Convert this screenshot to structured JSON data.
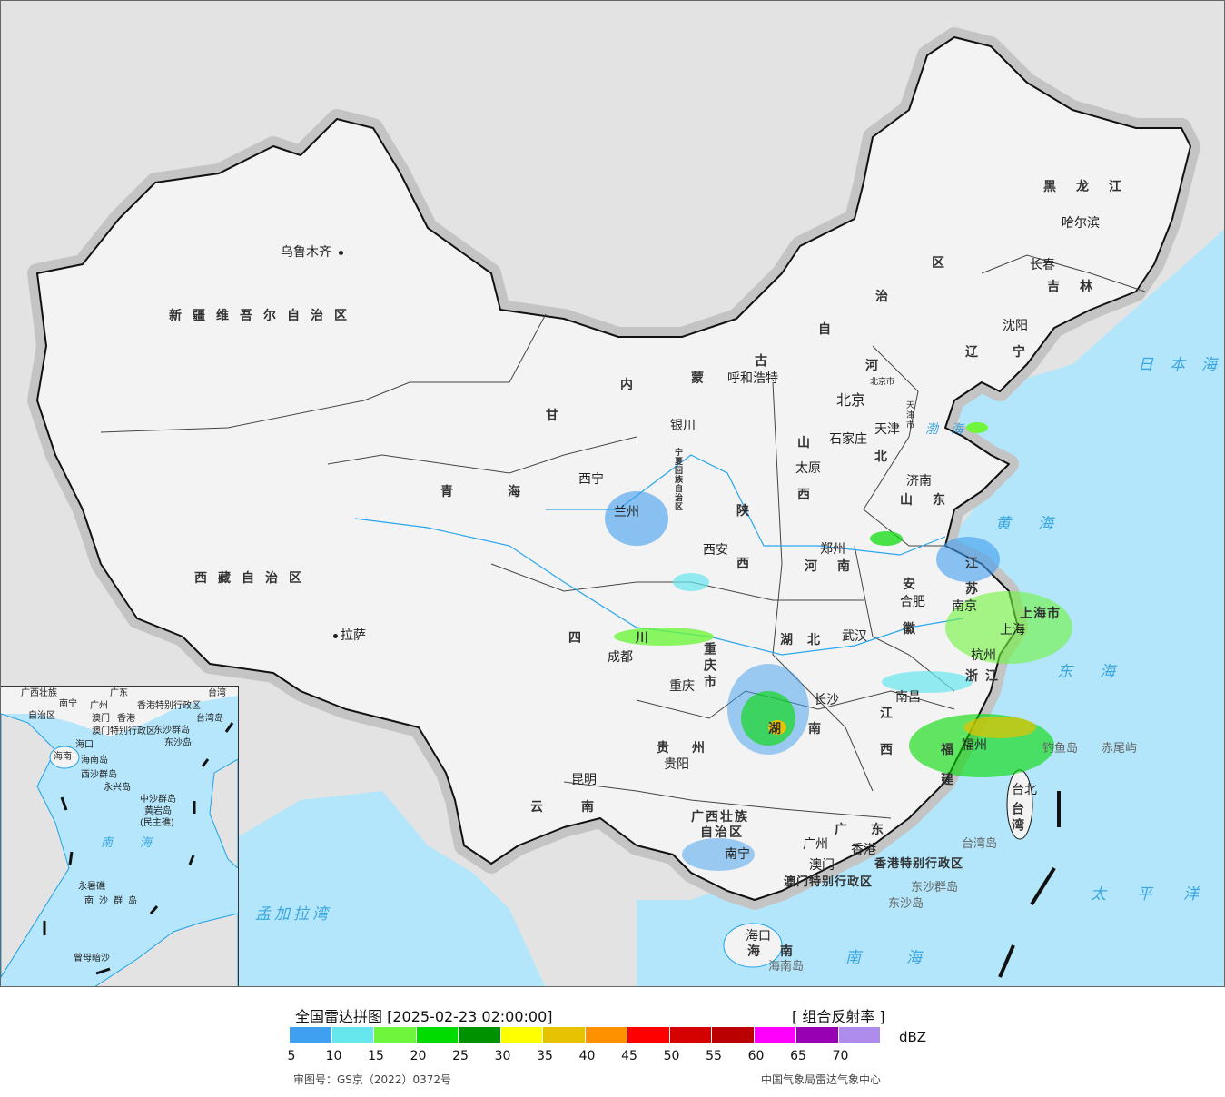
{
  "colors": {
    "sea": "#b3e6fb",
    "land_other": "#e3e3e3",
    "china": "#f2f2f2",
    "coast": "#1ea0e6",
    "border": "#111111"
  },
  "provinces": {
    "xinjiang": "新疆维吾尔自治区",
    "xizang": "西藏自治区",
    "qinghai": "青海",
    "gan": "甘",
    "nei": "内",
    "meng": "蒙",
    "gu": "古",
    "zi": "自",
    "zhi": "治",
    "qu": "区",
    "heilongjiang": "黑龙江",
    "jilin": "吉林",
    "liaoning": "辽宁",
    "he_b": "河",
    "bei": "北",
    "shan1": "山",
    "xi1": "西",
    "shaan": "陕",
    "xi2": "西",
    "shandong": "山东",
    "henan": "河南",
    "jiang_su": "江",
    "su": "苏",
    "an": "安",
    "hui": "徽",
    "hubei": "湖北",
    "sichuan": "四川",
    "chongqing": "重庆市",
    "guizhou": "贵州",
    "yunnan": "云南",
    "hunan": "湖南",
    "jiang_x": "江",
    "xi3": "西",
    "zhejiang": "浙江",
    "fu": "福",
    "jian": "建",
    "guangxi1": "广西壮族",
    "guangxi2": "自治区",
    "guangdong": "广东",
    "taiwan": "台湾",
    "hainan": "海南",
    "ningxia": "宁夏回族自治区",
    "shanghai": "上海市",
    "beijing_city": "北京市",
    "tianjin_city": "天津市",
    "hk_sar": "香港特别行政区",
    "mo_sar": "澳门特别行政区"
  },
  "cities": {
    "urumqi": "乌鲁木齐",
    "lhasa": "拉萨",
    "xining": "西宁",
    "lanzhou": "兰州",
    "yinchuan": "银川",
    "hohhot": "呼和浩特",
    "beijing": "北京",
    "tianjin": "天津",
    "shijiazhuang": "石家庄",
    "taiyuan": "太原",
    "jinan": "济南",
    "zhengzhou": "郑州",
    "xian": "西安",
    "chengdu": "成都",
    "chongqing": "重庆",
    "wuhan": "武汉",
    "hefei": "合肥",
    "nanjing": "南京",
    "shanghai": "上海",
    "hangzhou": "杭州",
    "nanchang": "南昌",
    "changsha": "长沙",
    "guiyang": "贵阳",
    "kunming": "昆明",
    "nanning": "南宁",
    "guangzhou": "广州",
    "macau": "澳门",
    "hongkong": "香港",
    "fuzhou": "福州",
    "taipei": "台北",
    "haikou": "海口",
    "harbin": "哈尔滨",
    "changchun": "长春",
    "shenyang": "沈阳"
  },
  "islands": {
    "diaoyu": "钓鱼岛",
    "chiwei": "赤尾屿",
    "taiwan_island": "台湾岛",
    "dongsha_qundao": "东沙群岛",
    "dongsha_dao": "东沙岛",
    "hainan_island": "海南岛"
  },
  "seas": {
    "bohai": "渤海",
    "huanghai": "黄海",
    "donghai": "东海",
    "japan_sea": "日本海",
    "pacific": "太平洋",
    "nanhai": "南海",
    "bengal": "孟加拉湾"
  },
  "inset": {
    "guangxi": "广西壮族",
    "zizhiqu": "自治区",
    "nanning": "南宁",
    "guangdong": "广东",
    "guangzhou": "广州",
    "macau": "澳门",
    "hk": "香港",
    "hk_sar": "香港特别行政区",
    "mo_sar": "澳门特别行政区",
    "taiwan": "台湾",
    "taiwan_island": "台湾岛",
    "dongsha_qd": "东沙群岛",
    "dongsha": "东沙岛",
    "haikou": "海口",
    "hainan": "海南",
    "hainan_island": "海南岛",
    "xisha": "西沙群岛",
    "yongxing": "永兴岛",
    "zhongsha": "中沙群岛",
    "huangyan": "黄岩岛",
    "minzhu": "(民主礁)",
    "nanhai": "南海",
    "yongshu": "永暑礁",
    "nansha": "南沙群岛",
    "zengmu": "曾母暗沙"
  },
  "legend": {
    "title": "全国雷达拼图 [2025-02-23 02:00:00]",
    "product": "[ 组合反射率 ]",
    "unit": "dBZ",
    "scale_colors": [
      "#3f9ff0",
      "#66e6ed",
      "#6ef53c",
      "#00db00",
      "#009100",
      "#ffff00",
      "#e6c200",
      "#ff9000",
      "#ff0000",
      "#d50000",
      "#bb0000",
      "#ff00ff",
      "#9700b3",
      "#ae8ceb"
    ],
    "ticks": [
      "5",
      "10",
      "15",
      "20",
      "25",
      "30",
      "35",
      "40",
      "45",
      "50",
      "55",
      "60",
      "65",
      "70"
    ],
    "approval": "审图号：GS京（2022）0372号",
    "credit": "中国气象局雷达气象中心"
  }
}
